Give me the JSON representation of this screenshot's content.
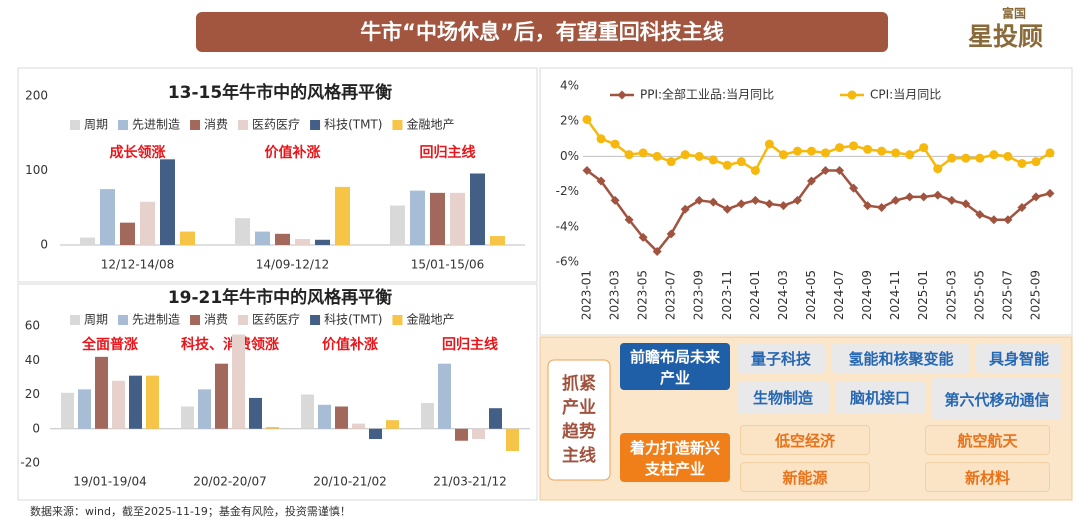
{
  "header": {
    "title": "牛市“中场休息”后，有望重回科技主线"
  },
  "logo": {
    "top": "富国",
    "main": "星投顾"
  },
  "footer": "数据来源：wind，截至2025-11-19；基金有风险，投资需谨慎！",
  "chart_data": [
    {
      "type": "bar",
      "title": "13-15年牛市中的风格再平衡",
      "categories": [
        "12/12-14/08",
        "14/09-12/12",
        "15/01-15/06"
      ],
      "annotations": [
        "成长领涨",
        "价值补涨",
        "回归主线"
      ],
      "series": [
        {
          "name": "周期",
          "color": "#d9d9d9",
          "values": [
            10,
            36,
            53
          ]
        },
        {
          "name": "先进制造",
          "color": "#a7bdd6",
          "values": [
            75,
            18,
            73
          ]
        },
        {
          "name": "消费",
          "color": "#a3685c",
          "values": [
            30,
            15,
            70
          ]
        },
        {
          "name": "医药医疗",
          "color": "#e6d1cc",
          "values": [
            58,
            8,
            70
          ]
        },
        {
          "name": "科技(TMT)",
          "color": "#435f86",
          "values": [
            115,
            7,
            96
          ]
        },
        {
          "name": "金融地产",
          "color": "#f6c447",
          "values": [
            18,
            78,
            12
          ]
        }
      ],
      "ylim": [
        0,
        200
      ],
      "yticks": [
        0,
        100,
        200
      ],
      "grid": false
    },
    {
      "type": "bar",
      "title": "19-21年牛市中的风格再平衡",
      "categories": [
        "19/01-19/04",
        "20/02-20/07",
        "20/10-21/02",
        "21/03-21/12"
      ],
      "annotations": [
        "全面普涨",
        "科技、消费领涨",
        "价值补涨",
        "回归主线"
      ],
      "series": [
        {
          "name": "周期",
          "color": "#d9d9d9",
          "values": [
            21,
            13,
            20,
            15
          ]
        },
        {
          "name": "先进制造",
          "color": "#a7bdd6",
          "values": [
            23,
            23,
            14,
            38
          ]
        },
        {
          "name": "消费",
          "color": "#a3685c",
          "values": [
            42,
            38,
            13,
            -7
          ]
        },
        {
          "name": "医药医疗",
          "color": "#e6d1cc",
          "values": [
            28,
            55,
            3,
            -6
          ]
        },
        {
          "name": "科技(TMT)",
          "color": "#435f86",
          "values": [
            31,
            18,
            -6,
            12
          ]
        },
        {
          "name": "金融地产",
          "color": "#f6c447",
          "values": [
            31,
            1,
            5,
            -13
          ]
        }
      ],
      "ylim": [
        -20,
        60
      ],
      "yticks": [
        -20,
        0,
        20,
        40,
        60
      ],
      "grid": false
    },
    {
      "type": "line",
      "categories": [
        "2023-01",
        null,
        "2023-03",
        null,
        "2023-05",
        null,
        "2023-07",
        null,
        "2023-09",
        null,
        "2023-11",
        null,
        "2024-01",
        null,
        "2024-03",
        null,
        "2024-05",
        null,
        "2024-07",
        null,
        "2024-09",
        null,
        "2024-11",
        null,
        "2025-01",
        null,
        "2025-03",
        null,
        "2025-05",
        null,
        "2025-07",
        null,
        "2025-09",
        null
      ],
      "series": [
        {
          "name": "PPI:全部工业品:当月同比",
          "color": "#a0533e",
          "marker": "diamond",
          "values": [
            -0.8,
            -1.4,
            -2.5,
            -3.6,
            -4.6,
            -5.4,
            -4.4,
            -3.0,
            -2.5,
            -2.6,
            -3.0,
            -2.7,
            -2.5,
            -2.7,
            -2.8,
            -2.5,
            -1.4,
            -0.8,
            -0.8,
            -1.8,
            -2.8,
            -2.9,
            -2.5,
            -2.3,
            -2.3,
            -2.2,
            -2.5,
            -2.7,
            -3.3,
            -3.6,
            -3.6,
            -2.9,
            -2.3,
            -2.1
          ]
        },
        {
          "name": "CPI:当月同比",
          "color": "#f6b80c",
          "marker": "circle",
          "values": [
            2.1,
            1.0,
            0.7,
            0.1,
            0.2,
            0.0,
            -0.3,
            0.1,
            0.0,
            -0.2,
            -0.5,
            -0.3,
            -0.8,
            0.7,
            0.1,
            0.3,
            0.3,
            0.2,
            0.5,
            0.6,
            0.4,
            0.3,
            0.2,
            0.1,
            0.5,
            -0.7,
            -0.1,
            -0.1,
            -0.1,
            0.1,
            0.0,
            -0.4,
            -0.3,
            0.2
          ]
        }
      ],
      "ylim": [
        -6,
        4
      ],
      "yticks": [
        {
          "value": -6,
          "label": "-6%"
        },
        {
          "value": -4,
          "label": "-4%"
        },
        {
          "value": -2,
          "label": "-2%"
        },
        {
          "value": 0,
          "label": "0%"
        },
        {
          "value": 2,
          "label": "2%"
        },
        {
          "value": 4,
          "label": "4%"
        }
      ],
      "grid": false
    }
  ],
  "diagram": {
    "main_label": "抓紧产业趋势主线",
    "future": {
      "label": "前瞻布局未来产业",
      "items": [
        "量子科技",
        "氢能和核聚变能",
        "具身智能",
        "生物制造",
        "脑机接口",
        "第六代移动通信"
      ]
    },
    "pillar": {
      "label": "着力打造新兴支柱产业",
      "items": [
        "低空经济",
        "航空航天",
        "新能源",
        "新材料"
      ]
    }
  }
}
